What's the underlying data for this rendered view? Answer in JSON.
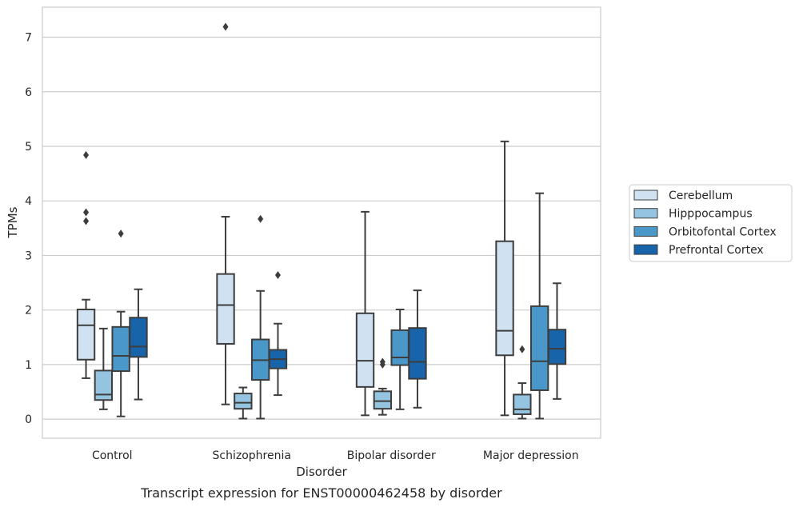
{
  "chart_data": {
    "type": "box",
    "caption": "Transcript expression for ENST00000462458 by disorder",
    "xlabel": "Disorder",
    "ylabel": "TPMs",
    "ylim": [
      -0.35,
      7.55
    ],
    "yticks": [
      0,
      1,
      2,
      3,
      4,
      5,
      6,
      7
    ],
    "grid": "horizontal",
    "legend_position": "right",
    "categories": [
      "Control",
      "Schizophrenia",
      "Bipolar disorder",
      "Major depression"
    ],
    "series": [
      {
        "name": "Cerebellum",
        "color": "#d0e1f2",
        "boxes": [
          {
            "whislo": 0.75,
            "q1": 1.09,
            "med": 1.72,
            "q3": 2.01,
            "whishi": 2.19,
            "fliers": [
              3.63,
              3.79,
              4.84
            ]
          },
          {
            "whislo": 0.27,
            "q1": 1.38,
            "med": 2.09,
            "q3": 2.66,
            "whishi": 3.71,
            "fliers": [
              7.19
            ]
          },
          {
            "whislo": 0.07,
            "q1": 0.59,
            "med": 1.07,
            "q3": 1.94,
            "whishi": 3.8,
            "fliers": []
          },
          {
            "whislo": 0.07,
            "q1": 1.17,
            "med": 1.62,
            "q3": 3.26,
            "whishi": 5.09,
            "fliers": []
          }
        ]
      },
      {
        "name": "Hipppocampus",
        "color": "#94c4df",
        "boxes": [
          {
            "whislo": 0.18,
            "q1": 0.35,
            "med": 0.45,
            "q3": 0.89,
            "whishi": 1.66,
            "fliers": []
          },
          {
            "whislo": 0.01,
            "q1": 0.19,
            "med": 0.3,
            "q3": 0.47,
            "whishi": 0.58,
            "fliers": []
          },
          {
            "whislo": 0.08,
            "q1": 0.19,
            "med": 0.33,
            "q3": 0.51,
            "whishi": 0.56,
            "fliers": [
              1.0,
              1.05
            ]
          },
          {
            "whislo": 0.01,
            "q1": 0.09,
            "med": 0.18,
            "q3": 0.45,
            "whishi": 0.66,
            "fliers": [
              1.28
            ]
          }
        ]
      },
      {
        "name": "Orbitofontal Cortex",
        "color": "#4a98c9",
        "boxes": [
          {
            "whislo": 0.05,
            "q1": 0.88,
            "med": 1.16,
            "q3": 1.69,
            "whishi": 1.97,
            "fliers": [
              3.4
            ]
          },
          {
            "whislo": 0.01,
            "q1": 0.72,
            "med": 1.08,
            "q3": 1.46,
            "whishi": 2.35,
            "fliers": [
              3.67
            ]
          },
          {
            "whislo": 0.18,
            "q1": 0.99,
            "med": 1.13,
            "q3": 1.63,
            "whishi": 2.01,
            "fliers": []
          },
          {
            "whislo": 0.01,
            "q1": 0.53,
            "med": 1.06,
            "q3": 2.07,
            "whishi": 4.14,
            "fliers": []
          }
        ]
      },
      {
        "name": "Prefrontal Cortex",
        "color": "#1764ab",
        "boxes": [
          {
            "whislo": 0.36,
            "q1": 1.14,
            "med": 1.33,
            "q3": 1.86,
            "whishi": 2.38,
            "fliers": []
          },
          {
            "whislo": 0.44,
            "q1": 0.93,
            "med": 1.1,
            "q3": 1.27,
            "whishi": 1.75,
            "fliers": [
              2.64
            ]
          },
          {
            "whislo": 0.21,
            "q1": 0.74,
            "med": 1.05,
            "q3": 1.67,
            "whishi": 2.36,
            "fliers": []
          },
          {
            "whislo": 0.37,
            "q1": 1.01,
            "med": 1.29,
            "q3": 1.64,
            "whishi": 2.49,
            "fliers": []
          }
        ]
      }
    ]
  }
}
